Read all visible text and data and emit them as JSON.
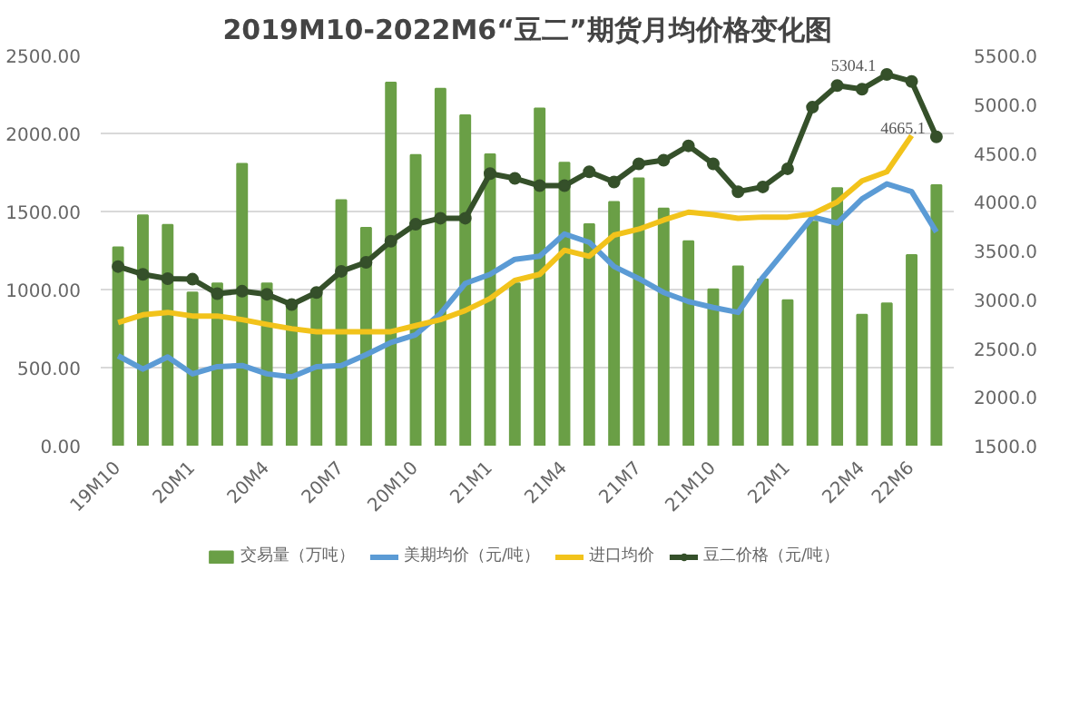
{
  "chart_data": {
    "type": "bar",
    "title": "2019M10-2022M6“豆二”期货月均价格变化图",
    "categories": [
      "19M10",
      null,
      null,
      "20M1",
      null,
      null,
      "20M4",
      null,
      null,
      "20M7",
      null,
      null,
      "20M10",
      null,
      null,
      "21M1",
      null,
      null,
      "21M4",
      null,
      null,
      "21M7",
      null,
      null,
      "21M10",
      null,
      null,
      "22M1",
      null,
      null,
      "22M4",
      null,
      "22M6",
      null
    ],
    "series": [
      {
        "name": "交易量（万吨）",
        "color": "#6a9f46",
        "values": [
          1270,
          1476,
          1414,
          981,
          1039,
          1805,
          1039,
          923,
          981,
          1573,
          1395,
          2326,
          1862,
          2287,
          2117,
          1866,
          1039,
          2160,
          1812,
          1418,
          1561,
          1712,
          1519,
          1310,
          1001,
          1148,
          1066,
          931,
          1434,
          1650,
          838,
          912,
          1221,
          1669
        ]
      },
      {
        "name": "美期均价（元/吨）",
        "type": "line",
        "axis": "y2",
        "color": "#5b9bd5",
        "marker": "none",
        "values": [
          2421,
          2285,
          2409,
          2236,
          2310,
          2322,
          2236,
          2205,
          2310,
          2322,
          2433,
          2557,
          2637,
          2854,
          3163,
          3256,
          3410,
          3441,
          3670,
          3584,
          3336,
          3212,
          3070,
          2977,
          2916,
          2866,
          3225,
          3534,
          3843,
          3781,
          4029,
          4183,
          4103,
          3689
        ]
      },
      {
        "name": "进口均价",
        "type": "line",
        "axis": "y2",
        "color": "#f2c31b",
        "marker": "none",
        "values": [
          2761,
          2841,
          2866,
          2829,
          2829,
          2792,
          2743,
          2699,
          2668,
          2668,
          2668,
          2668,
          2730,
          2792,
          2885,
          3008,
          3194,
          3256,
          3503,
          3441,
          3658,
          3719,
          3812,
          3893,
          3868,
          3831,
          3843,
          3843,
          3874,
          3998,
          4214,
          4307,
          4678,
          null
        ]
      },
      {
        "name": "豆二价格（元/吨）",
        "type": "line",
        "axis": "y2",
        "color": "#35502a",
        "marker": "circle",
        "values": [
          3336,
          3256,
          3212,
          3206,
          3058,
          3083,
          3052,
          2947,
          3070,
          3287,
          3379,
          3596,
          3769,
          3831,
          3831,
          4288,
          4239,
          4165,
          4165,
          4307,
          4202,
          4388,
          4425,
          4573,
          4388,
          4103,
          4152,
          4338,
          4969,
          5191,
          5154,
          5304.1,
          5233,
          4665.1
        ],
        "value_labels": [
          null,
          null,
          null,
          null,
          null,
          null,
          null,
          null,
          null,
          null,
          null,
          null,
          null,
          null,
          null,
          null,
          null,
          null,
          null,
          null,
          null,
          null,
          null,
          null,
          null,
          null,
          null,
          null,
          null,
          null,
          null,
          "5304.1",
          null,
          "4665.1"
        ]
      }
    ],
    "ylim": [
      0,
      2500
    ],
    "yticks": [
      {
        "value": 0,
        "label": "0.00"
      },
      {
        "value": 500,
        "label": "500.00"
      },
      {
        "value": 1000,
        "label": "1000.00"
      },
      {
        "value": 1500,
        "label": "1500.00"
      },
      {
        "value": 2000,
        "label": "2000.00"
      },
      {
        "value": 2500,
        "label": "2500.00"
      }
    ],
    "y2lim": [
      1500,
      5500
    ],
    "y2ticks": [
      {
        "value": 1500,
        "label": "1500.0"
      },
      {
        "value": 2000,
        "label": "2000.0"
      },
      {
        "value": 2500,
        "label": "2500.0"
      },
      {
        "value": 3000,
        "label": "3000.0"
      },
      {
        "value": 3500,
        "label": "3500.0"
      },
      {
        "value": 4000,
        "label": "4000.0"
      },
      {
        "value": 4500,
        "label": "4500.0"
      },
      {
        "value": 5000,
        "label": "5000.0"
      },
      {
        "value": 5500,
        "label": "5500.0"
      }
    ],
    "grid": "y",
    "legend": "bottom"
  }
}
